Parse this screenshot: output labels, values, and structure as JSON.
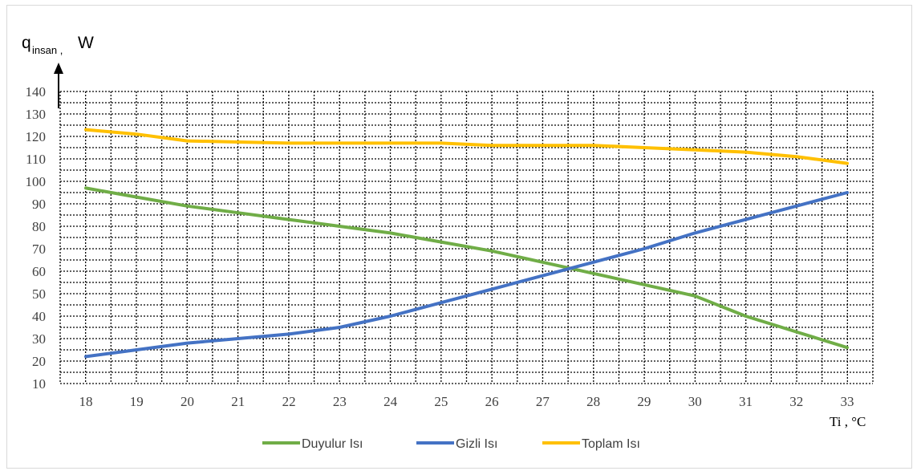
{
  "chart_data": {
    "type": "line",
    "ylabel_main": "q",
    "ylabel_sub": "insan ,",
    "ylabel_unit": "W",
    "xlabel": "Ti , °C",
    "x": [
      18,
      19,
      20,
      21,
      22,
      23,
      24,
      25,
      26,
      27,
      28,
      29,
      30,
      31,
      32,
      33
    ],
    "ylim": [
      10,
      140
    ],
    "yticks": [
      10,
      20,
      30,
      40,
      50,
      60,
      70,
      80,
      90,
      100,
      110,
      120,
      130,
      140
    ],
    "grid": true,
    "legend_position": "bottom",
    "series": [
      {
        "name": "Duyulur Isı",
        "color": "#70ad47",
        "values": [
          97,
          93,
          89,
          86,
          83,
          80,
          77,
          73,
          69,
          64,
          59,
          54,
          49,
          40,
          33,
          26
        ]
      },
      {
        "name": "Gizli Isı",
        "color": "#4472c4",
        "values": [
          22,
          25,
          28,
          30,
          32,
          35,
          40,
          46,
          52,
          58,
          64,
          70,
          77,
          83,
          89,
          95
        ]
      },
      {
        "name": "Toplam Isı",
        "color": "#ffc000",
        "values": [
          123,
          121,
          118,
          117.5,
          117,
          117,
          117,
          117,
          116,
          116,
          116,
          115,
          114,
          113,
          111,
          108
        ]
      }
    ]
  }
}
